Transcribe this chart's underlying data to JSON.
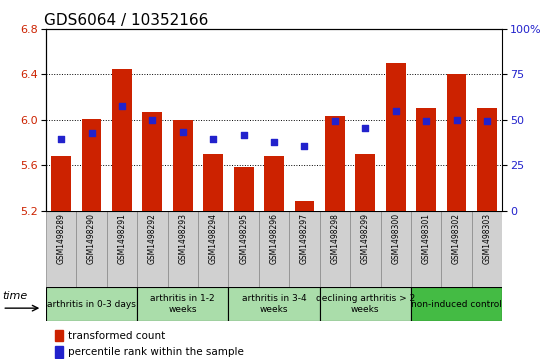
{
  "title": "GDS6064 / 10352166",
  "samples": [
    "GSM1498289",
    "GSM1498290",
    "GSM1498291",
    "GSM1498292",
    "GSM1498293",
    "GSM1498294",
    "GSM1498295",
    "GSM1498296",
    "GSM1498297",
    "GSM1498298",
    "GSM1498299",
    "GSM1498300",
    "GSM1498301",
    "GSM1498302",
    "GSM1498303"
  ],
  "bar_values": [
    5.68,
    6.01,
    6.45,
    6.07,
    6.0,
    5.7,
    5.58,
    5.68,
    5.28,
    6.03,
    5.7,
    6.5,
    6.1,
    6.4,
    6.1
  ],
  "bar_base": 5.2,
  "blue_values": [
    5.83,
    5.88,
    6.12,
    6.0,
    5.89,
    5.83,
    5.87,
    5.8,
    5.77,
    5.99,
    5.93,
    6.08,
    5.99,
    6.0,
    5.99
  ],
  "ylim": [
    5.2,
    6.8
  ],
  "y2lim": [
    0,
    100
  ],
  "yticks": [
    5.2,
    5.6,
    6.0,
    6.4,
    6.8
  ],
  "y2ticks": [
    0,
    25,
    50,
    75,
    100
  ],
  "bar_color": "#cc2200",
  "blue_color": "#2222cc",
  "groups": [
    {
      "label": "arthritis in 0-3 days",
      "start": 0,
      "end": 3,
      "light": true
    },
    {
      "label": "arthritis in 1-2\nweeks",
      "start": 3,
      "end": 6,
      "light": true
    },
    {
      "label": "arthritis in 3-4\nweeks",
      "start": 6,
      "end": 9,
      "light": true
    },
    {
      "label": "declining arthritis > 2\nweeks",
      "start": 9,
      "end": 12,
      "light": true
    },
    {
      "label": "non-induced control",
      "start": 12,
      "end": 15,
      "light": false
    }
  ],
  "legend_red": "transformed count",
  "legend_blue": "percentile rank within the sample"
}
